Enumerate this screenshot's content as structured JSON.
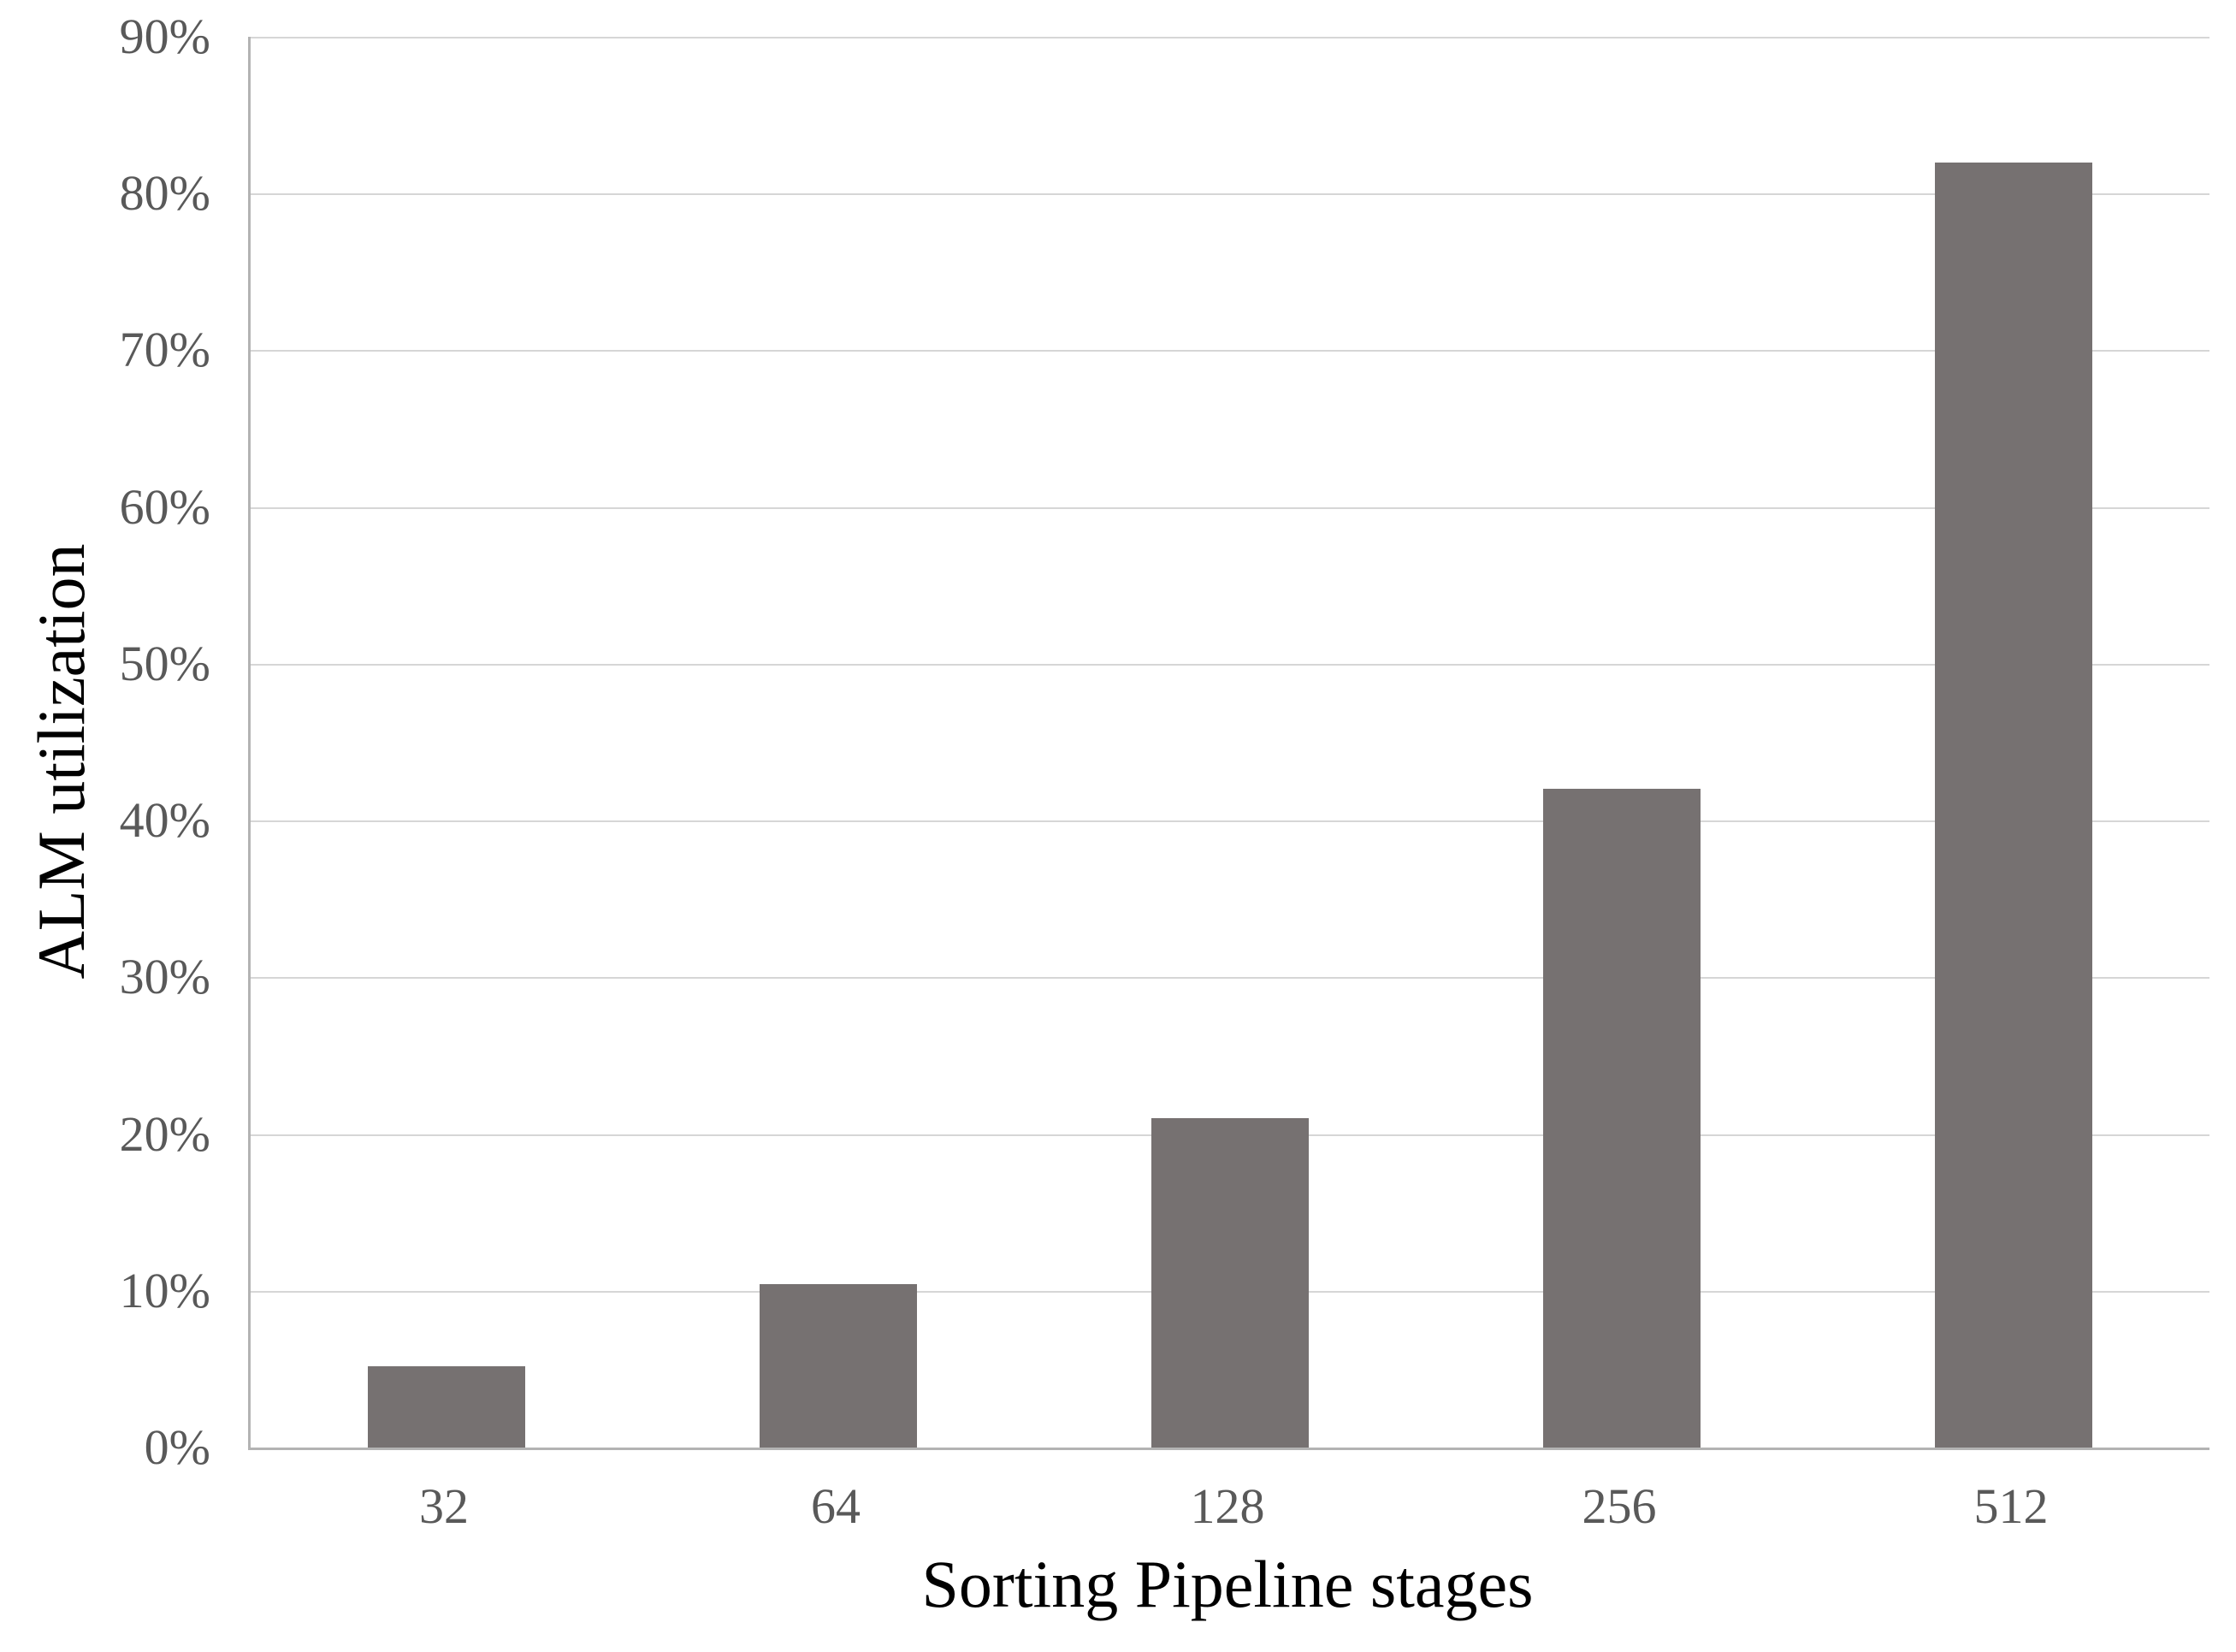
{
  "chart_data": {
    "type": "bar",
    "categories": [
      "32",
      "64",
      "128",
      "256",
      "512"
    ],
    "values": [
      5.2,
      10.4,
      21,
      42,
      82
    ],
    "title": "",
    "xlabel": "Sorting Pipeline stages",
    "ylabel": "ALM utilization",
    "ylim": [
      0,
      90
    ],
    "ytick_interval": 10,
    "ytick_labels": [
      "0%",
      "10%",
      "20%",
      "30%",
      "40%",
      "50%",
      "60%",
      "70%",
      "80%",
      "90%"
    ],
    "grid": "horizontal-only",
    "legend": "none",
    "colors": {
      "bar": "#767171",
      "gridline": "#d6d6d6",
      "axis_line": "#b3b3b3",
      "tick_label": "#595959",
      "axis_title": "#000000",
      "background": "#ffffff"
    }
  }
}
